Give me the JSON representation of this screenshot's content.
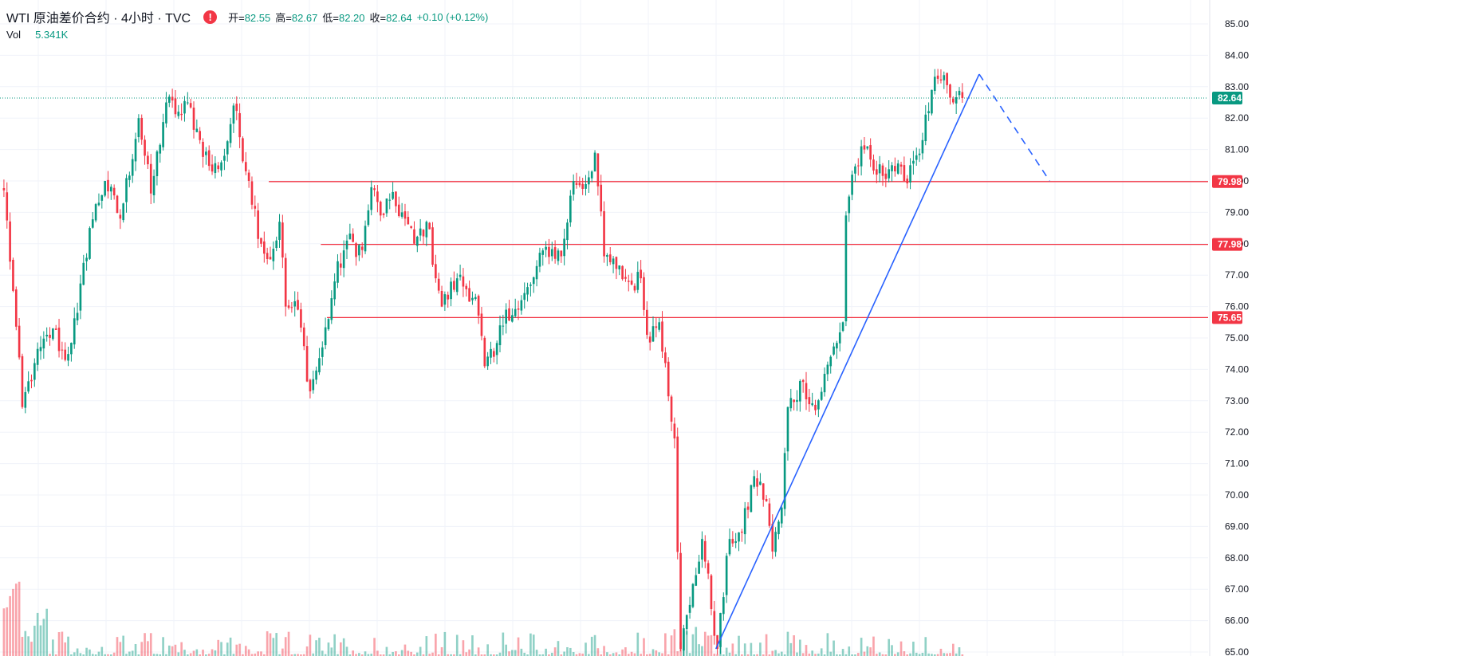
{
  "header": {
    "symbol_title": "WTI 原油差价合约 · 4小时 · TVC",
    "alert_icon": "exclamation-alert-icon",
    "open_label": "开=",
    "open_value": "82.55",
    "high_label": "高=",
    "high_value": "82.67",
    "low_label": "低=",
    "low_value": "82.20",
    "close_label": "收=",
    "close_value": "82.64",
    "change": "+0.10 (+0.12%)",
    "vol_label": "Vol",
    "vol_value": "5.341K"
  },
  "colors": {
    "up": "#089981",
    "down": "#f23645",
    "trendline": "#2962ff",
    "level_line": "#f23645",
    "last_price_tag": "#089981",
    "grid": "#f0f3fa"
  },
  "chart_data": {
    "type": "candlestick",
    "title": "WTI 原油差价合约",
    "interval": "4小时",
    "source": "TVC",
    "ylim": [
      65,
      85
    ],
    "y_ticks": [
      "85.00",
      "84.00",
      "83.00",
      "82.00",
      "81.00",
      "80.00",
      "79.00",
      "78.00",
      "77.00",
      "76.00",
      "75.00",
      "74.00",
      "73.00",
      "72.00",
      "71.00",
      "70.00",
      "69.00",
      "68.00",
      "67.00",
      "66.00",
      "65.00"
    ],
    "last_price": "82.64",
    "horizontal_levels": [
      {
        "value": 79.98,
        "label": "79.98",
        "start_bar": 87
      },
      {
        "value": 77.98,
        "label": "77.98",
        "start_bar": 104
      },
      {
        "value": 75.65,
        "label": "75.65",
        "start_bar": 106
      }
    ],
    "trendline": {
      "from": {
        "bar": 233,
        "price": 65.1
      },
      "to": {
        "bar": 319,
        "price": 83.4
      }
    },
    "projection": {
      "from": {
        "bar": 319,
        "price": 83.4
      },
      "to": {
        "bar": 342,
        "price": 80.0
      }
    },
    "waypoints": [
      [
        0,
        79.7
      ],
      [
        3,
        76.5
      ],
      [
        6,
        72.8
      ],
      [
        10,
        74.2
      ],
      [
        16,
        75.3
      ],
      [
        20,
        74.3
      ],
      [
        24,
        75.8
      ],
      [
        28,
        78.5
      ],
      [
        33,
        80.0
      ],
      [
        38,
        78.8
      ],
      [
        44,
        82.0
      ],
      [
        48,
        79.6
      ],
      [
        53,
        82.5
      ],
      [
        58,
        82.1
      ],
      [
        60,
        82.5
      ],
      [
        64,
        81.3
      ],
      [
        68,
        80.3
      ],
      [
        72,
        80.8
      ],
      [
        75,
        82.4
      ],
      [
        80,
        80.0
      ],
      [
        84,
        78.0
      ],
      [
        87,
        77.5
      ],
      [
        90,
        78.7
      ],
      [
        92,
        76.0
      ],
      [
        96,
        75.9
      ],
      [
        100,
        73.3
      ],
      [
        104,
        74.7
      ],
      [
        108,
        76.8
      ],
      [
        112,
        78.1
      ],
      [
        117,
        77.8
      ],
      [
        120,
        79.8
      ],
      [
        123,
        78.9
      ],
      [
        126,
        79.4
      ],
      [
        130,
        79.0
      ],
      [
        134,
        78.0
      ],
      [
        138,
        78.7
      ],
      [
        143,
        76.0
      ],
      [
        148,
        76.9
      ],
      [
        154,
        76.3
      ],
      [
        157,
        74.1
      ],
      [
        160,
        74.4
      ],
      [
        164,
        75.9
      ],
      [
        168,
        75.9
      ],
      [
        172,
        76.7
      ],
      [
        177,
        77.9
      ],
      [
        182,
        77.6
      ],
      [
        186,
        80.0
      ],
      [
        190,
        79.9
      ],
      [
        193,
        80.9
      ],
      [
        196,
        77.6
      ],
      [
        200,
        77.2
      ],
      [
        205,
        76.7
      ],
      [
        208,
        76.9
      ],
      [
        210,
        75.1
      ],
      [
        214,
        75.5
      ],
      [
        216,
        74.2
      ],
      [
        219,
        71.8
      ],
      [
        221,
        65.1
      ],
      [
        224,
        66.5
      ],
      [
        228,
        68.6
      ],
      [
        233,
        65.1
      ],
      [
        237,
        68.6
      ],
      [
        241,
        68.8
      ],
      [
        245,
        70.6
      ],
      [
        249,
        69.8
      ],
      [
        251,
        68.2
      ],
      [
        254,
        69.6
      ],
      [
        256,
        72.8
      ],
      [
        261,
        73.6
      ],
      [
        265,
        72.7
      ],
      [
        270,
        74.4
      ],
      [
        274,
        75.5
      ],
      [
        275,
        78.9
      ],
      [
        277,
        80.2
      ],
      [
        281,
        81.0
      ],
      [
        285,
        80.2
      ],
      [
        290,
        80.5
      ],
      [
        294,
        80.0
      ],
      [
        296,
        80.5
      ],
      [
        300,
        81.3
      ],
      [
        303,
        82.9
      ],
      [
        306,
        83.2
      ],
      [
        310,
        82.5
      ],
      [
        313,
        82.64
      ]
    ],
    "volume": {
      "shown": true,
      "last_bar_volume": "5.341K"
    }
  }
}
